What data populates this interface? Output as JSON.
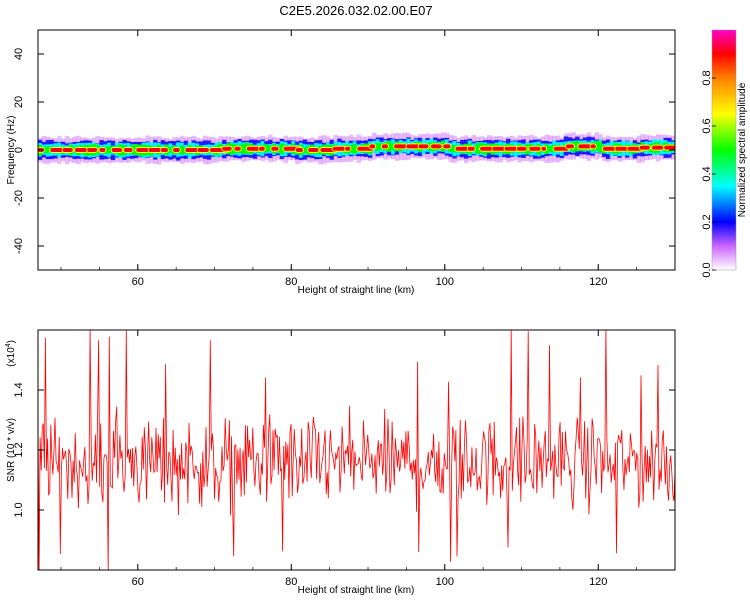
{
  "title": "C2E5.2026.032.02.00.E07",
  "chart_data": [
    {
      "type": "heatmap",
      "title": "C2E5.2026.032.02.00.E07",
      "xlabel": "Height of straight line (km)",
      "ylabel": "Frequency (Hz)",
      "xlim": [
        47,
        130
      ],
      "ylim": [
        -50,
        50
      ],
      "xticks": [
        60,
        80,
        100,
        120
      ],
      "yticks": [
        -40,
        -20,
        0,
        20,
        40
      ],
      "grid": false,
      "colorbar": {
        "label": "Normalized spectral amplitude",
        "range": [
          0,
          1
        ],
        "ticks": [
          "0.0",
          "0.2",
          "0.4",
          "0.6",
          "0.8"
        ],
        "colors": [
          "#ffffff",
          "#cc66ff",
          "#0000ff",
          "#00ffff",
          "#00ff00",
          "#ffff00",
          "#ff8000",
          "#ff0000",
          "#ff00cc"
        ]
      },
      "ridge": {
        "x": [
          47,
          50,
          55,
          60,
          65,
          70,
          75,
          80,
          85,
          88,
          90,
          95,
          100,
          105,
          110,
          115,
          120,
          125,
          130
        ],
        "y": [
          0,
          0,
          0,
          0,
          0,
          0.5,
          0.5,
          0,
          0.5,
          0.5,
          1.5,
          1.5,
          0.5,
          0.5,
          0.5,
          1.5,
          0.5,
          1,
          1.5
        ],
        "peak_amplitude": 1.0
      }
    },
    {
      "type": "line",
      "xlabel": "Height of straight line (km)",
      "ylabel": "SNR (10 * v/v)",
      "yscale_label": "(x10",
      "yscale_exp": "4",
      "xlim": [
        47,
        130
      ],
      "ylim": [
        0.8,
        1.6
      ],
      "xticks": [
        60,
        80,
        100,
        120
      ],
      "yticks": [
        "1.0",
        "1.2",
        "1.4"
      ],
      "series": [
        {
          "color": "#ff0000",
          "mean": 1.16,
          "values_summary": {
            "min": 0.79,
            "max": 1.62,
            "typical_range": [
              1.0,
              1.35
            ]
          }
        }
      ]
    }
  ]
}
